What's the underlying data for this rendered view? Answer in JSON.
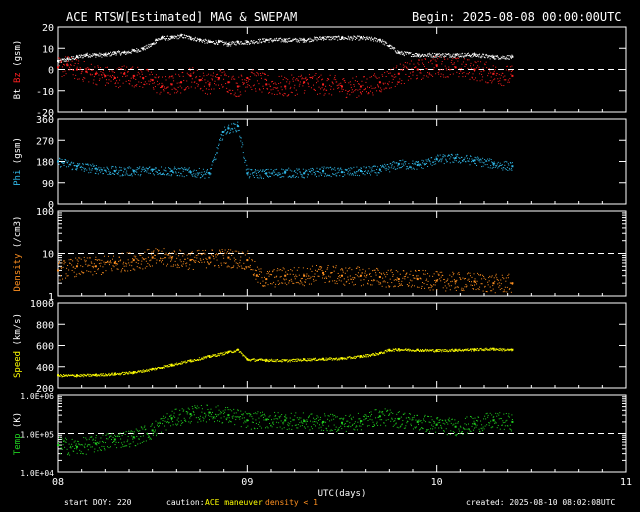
{
  "header": {
    "title": "ACE RTSW[Estimated] MAG & SWEPAM",
    "begin": "Begin: 2025-08-08 00:00:00UTC"
  },
  "footer": {
    "start_doy": "start DOY: 220",
    "caution": "caution:",
    "ace_maneuver": "ACE maneuver",
    "density_lt1": "density < 1",
    "created": "created: 2025-08-10 08:02:08UTC"
  },
  "colors": {
    "background": "#000000",
    "frame": "#ffffff",
    "bt": "#ffffff",
    "bz": "#ff2020",
    "phi": "#30b8e8",
    "density": "#ff9020",
    "speed": "#ffff00",
    "temp": "#20d020",
    "caution_maneuver": "#ffff00",
    "caution_density": "#ff9020"
  },
  "chart_data": [
    {
      "type": "scatter",
      "panel": "mag",
      "ylabel_parts": [
        "Bt",
        "Bz",
        "(gsm)"
      ],
      "ylim": [
        -20,
        20
      ],
      "yticks": [
        20,
        10,
        0,
        -10,
        -20
      ],
      "ytick_labels": [
        "20",
        "10",
        "0",
        "-10",
        "-20"
      ],
      "ref_line": 0,
      "series": [
        {
          "name": "Bt",
          "color": "#ffffff",
          "x": [
            0,
            0.05,
            0.1,
            0.15,
            0.2,
            0.25,
            0.3,
            0.35,
            0.4,
            0.45,
            0.5,
            0.52,
            0.55,
            0.6,
            0.65,
            0.7,
            0.75,
            0.8,
            0.85,
            0.9,
            0.95,
            1.0,
            1.1,
            1.2,
            1.3,
            1.4,
            1.5,
            1.6,
            1.7,
            1.75,
            1.8,
            1.9,
            2.0,
            2.1,
            2.2,
            2.3,
            2.4
          ],
          "values": [
            4,
            5,
            6,
            7,
            7,
            7,
            8,
            8,
            9,
            10,
            12,
            14,
            15,
            15,
            16,
            15,
            14,
            13,
            13,
            12,
            13,
            13,
            14,
            14,
            14,
            15,
            15,
            15,
            14,
            11,
            8,
            7,
            7,
            7,
            7,
            6,
            6
          ]
        },
        {
          "name": "Bz",
          "color": "#ff2020",
          "x": [
            0,
            0.05,
            0.1,
            0.15,
            0.2,
            0.25,
            0.3,
            0.35,
            0.4,
            0.45,
            0.5,
            0.55,
            0.6,
            0.65,
            0.7,
            0.75,
            0.8,
            0.85,
            0.9,
            0.95,
            1.0,
            1.1,
            1.2,
            1.3,
            1.4,
            1.5,
            1.6,
            1.7,
            1.8,
            1.9,
            2.0,
            2.1,
            2.2,
            2.3,
            2.4
          ],
          "values": [
            1,
            2,
            0,
            -1,
            -2,
            -3,
            -4,
            -2,
            -3,
            -4,
            -5,
            -8,
            -7,
            -6,
            -3,
            -5,
            -7,
            -4,
            -6,
            -8,
            -4,
            -7,
            -8,
            -6,
            -7,
            -8,
            -8,
            -6,
            -2,
            0,
            2,
            1,
            0,
            -2,
            -3
          ]
        }
      ]
    },
    {
      "type": "scatter",
      "panel": "phi",
      "ylabel": "Phi (gsm)",
      "ylim": [
        0,
        360
      ],
      "yticks": [
        360,
        270,
        180,
        90,
        0
      ],
      "ytick_labels": [
        "360",
        "270",
        "180",
        "90",
        "0"
      ],
      "series": [
        {
          "name": "Phi",
          "color": "#30b8e8",
          "x": [
            0,
            0.1,
            0.2,
            0.3,
            0.4,
            0.5,
            0.6,
            0.7,
            0.8,
            0.87,
            0.9,
            0.95,
            1.0,
            1.1,
            1.2,
            1.3,
            1.4,
            1.5,
            1.6,
            1.7,
            1.8,
            1.9,
            2.0,
            2.1,
            2.2,
            2.3,
            2.4
          ],
          "values": [
            180,
            160,
            150,
            140,
            140,
            145,
            140,
            135,
            130,
            305,
            320,
            330,
            130,
            130,
            135,
            130,
            140,
            135,
            140,
            145,
            170,
            165,
            190,
            195,
            185,
            170,
            160
          ]
        }
      ]
    },
    {
      "type": "scatter",
      "panel": "density",
      "ylabel": "Density (/cm3)",
      "yscale": "log",
      "ylim": [
        1,
        100
      ],
      "yticks": [
        100,
        10,
        1
      ],
      "ytick_labels": [
        "100",
        "10",
        "1"
      ],
      "ref_line": 10,
      "series": [
        {
          "name": "Density",
          "color": "#ff9020",
          "x": [
            0,
            0.1,
            0.2,
            0.3,
            0.4,
            0.5,
            0.6,
            0.7,
            0.8,
            0.9,
            1.0,
            1.05,
            1.1,
            1.2,
            1.3,
            1.4,
            1.5,
            1.6,
            1.7,
            1.8,
            1.9,
            2.0,
            2.1,
            2.2,
            2.3,
            2.4
          ],
          "values": [
            4,
            5,
            5,
            6,
            7,
            8,
            8,
            7,
            8,
            8,
            7,
            3,
            2.5,
            3,
            3,
            3.5,
            3,
            3,
            2.8,
            2.5,
            2.5,
            2.3,
            2.2,
            2.2,
            2,
            2
          ]
        }
      ]
    },
    {
      "type": "scatter",
      "panel": "speed",
      "ylabel": "Speed (km/s)",
      "ylim": [
        200,
        1000
      ],
      "yticks": [
        1000,
        800,
        600,
        400,
        200
      ],
      "ytick_labels": [
        "1000",
        "800",
        "600",
        "400",
        "200"
      ],
      "series": [
        {
          "name": "Speed",
          "color": "#ffff00",
          "x": [
            0,
            0.1,
            0.2,
            0.3,
            0.4,
            0.5,
            0.6,
            0.7,
            0.8,
            0.9,
            0.95,
            1.0,
            1.1,
            1.2,
            1.3,
            1.4,
            1.5,
            1.6,
            1.7,
            1.75,
            1.8,
            1.9,
            2.0,
            2.1,
            2.2,
            2.3,
            2.4
          ],
          "values": [
            320,
            320,
            325,
            335,
            350,
            380,
            420,
            460,
            500,
            540,
            560,
            470,
            465,
            460,
            470,
            475,
            480,
            500,
            530,
            560,
            565,
            560,
            555,
            560,
            565,
            570,
            560
          ]
        }
      ]
    },
    {
      "type": "scatter",
      "panel": "temp",
      "ylabel": "Temp (K)",
      "yscale": "log",
      "ylim": [
        10000,
        1000000
      ],
      "yticks": [
        1000000,
        100000,
        10000
      ],
      "ytick_labels": [
        "1.0E+06",
        "1.0E+05",
        "1.0E+04"
      ],
      "ref_line": 100000,
      "series": [
        {
          "name": "Temp",
          "color": "#20d020",
          "x": [
            0,
            0.1,
            0.2,
            0.3,
            0.4,
            0.5,
            0.6,
            0.7,
            0.8,
            0.9,
            1.0,
            1.1,
            1.2,
            1.3,
            1.4,
            1.5,
            1.6,
            1.7,
            1.8,
            1.9,
            2.0,
            2.1,
            2.2,
            2.3,
            2.4
          ],
          "values": [
            50000,
            45000,
            55000,
            70000,
            80000,
            120000,
            250000,
            320000,
            350000,
            300000,
            220000,
            230000,
            220000,
            210000,
            200000,
            190000,
            210000,
            280000,
            240000,
            200000,
            170000,
            150000,
            180000,
            220000,
            200000
          ]
        }
      ]
    }
  ],
  "xaxis": {
    "xlim": [
      0,
      3
    ],
    "ticks": [
      0,
      1,
      2,
      3
    ],
    "tick_labels": [
      "08",
      "09",
      "10",
      "11"
    ],
    "label": "UTC(days)"
  }
}
